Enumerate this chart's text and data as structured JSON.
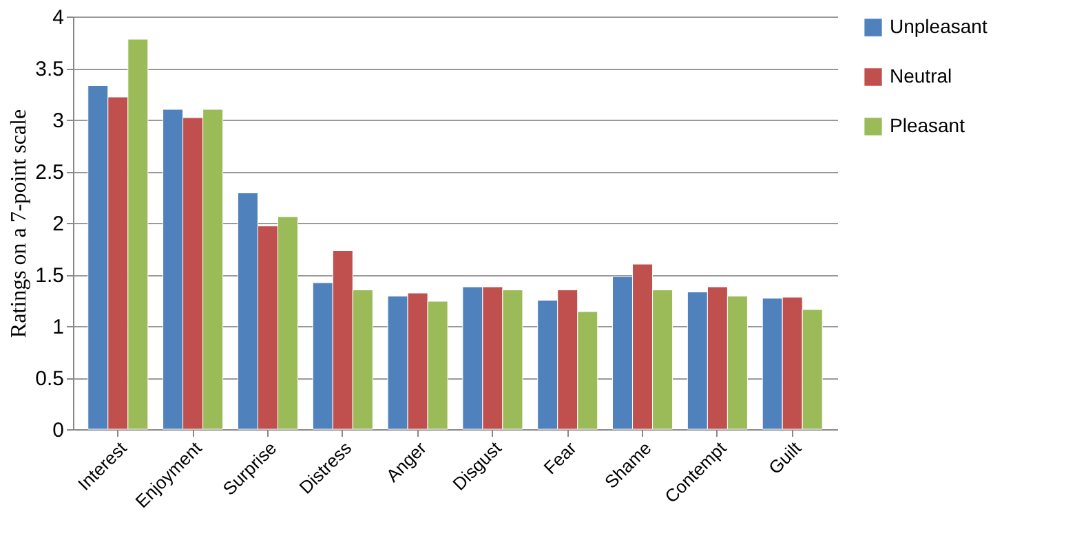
{
  "chart_data": {
    "type": "bar",
    "ylabel": "Ratings on a 7-point scale",
    "categories": [
      "Interest",
      "Enjoyment",
      "Surprise",
      "Distress",
      "Anger",
      "Disgust",
      "Fear",
      "Shame",
      "Contempt",
      "Guilt"
    ],
    "series": [
      {
        "name": "Unpleasant",
        "color": "#4f81bd",
        "values": [
          3.33,
          3.1,
          2.29,
          1.42,
          1.29,
          1.38,
          1.25,
          1.48,
          1.33,
          1.27
        ]
      },
      {
        "name": "Neutral",
        "color": "#c0504d",
        "values": [
          3.22,
          3.02,
          1.97,
          1.73,
          1.32,
          1.38,
          1.35,
          1.6,
          1.38,
          1.28
        ]
      },
      {
        "name": "Pleasant",
        "color": "#9bbb59",
        "values": [
          3.78,
          3.1,
          2.06,
          1.35,
          1.24,
          1.35,
          1.14,
          1.35,
          1.29,
          1.16
        ]
      }
    ],
    "ylim": [
      0,
      4
    ],
    "yticks": [
      0,
      0.5,
      1,
      1.5,
      2,
      2.5,
      3,
      3.5,
      4
    ],
    "grid": "y",
    "legend": "right"
  }
}
